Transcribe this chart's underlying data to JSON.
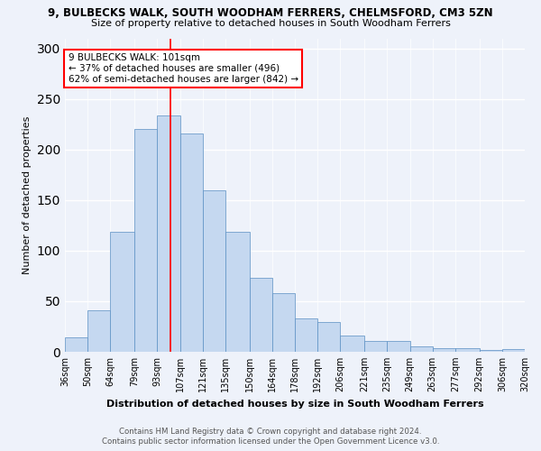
{
  "title1": "9, BULBECKS WALK, SOUTH WOODHAM FERRERS, CHELMSFORD, CM3 5ZN",
  "title2": "Size of property relative to detached houses in South Woodham Ferrers",
  "xlabel": "Distribution of detached houses by size in South Woodham Ferrers",
  "ylabel": "Number of detached properties",
  "footnote1": "Contains HM Land Registry data © Crown copyright and database right 2024.",
  "footnote2": "Contains public sector information licensed under the Open Government Licence v3.0.",
  "categories": [
    "36sqm",
    "50sqm",
    "64sqm",
    "79sqm",
    "93sqm",
    "107sqm",
    "121sqm",
    "135sqm",
    "150sqm",
    "164sqm",
    "178sqm",
    "192sqm",
    "206sqm",
    "221sqm",
    "235sqm",
    "249sqm",
    "263sqm",
    "277sqm",
    "292sqm",
    "306sqm",
    "320sqm"
  ],
  "values": [
    14,
    41,
    119,
    220,
    234,
    216,
    160,
    119,
    73,
    58,
    33,
    29,
    16,
    11,
    11,
    5,
    4,
    4,
    2,
    3
  ],
  "bar_color": "#c5d8f0",
  "bar_edge_color": "#5a8fc3",
  "annotation_text": "9 BULBECKS WALK: 101sqm\n← 37% of detached houses are smaller (496)\n62% of semi-detached houses are larger (842) →",
  "annotation_box_color": "white",
  "annotation_box_edge_color": "red",
  "vline_x": 101,
  "vline_color": "red",
  "ylim": [
    0,
    310
  ],
  "yticks": [
    0,
    50,
    100,
    150,
    200,
    250,
    300
  ],
  "background_color": "#eef2fa",
  "grid_color": "white"
}
